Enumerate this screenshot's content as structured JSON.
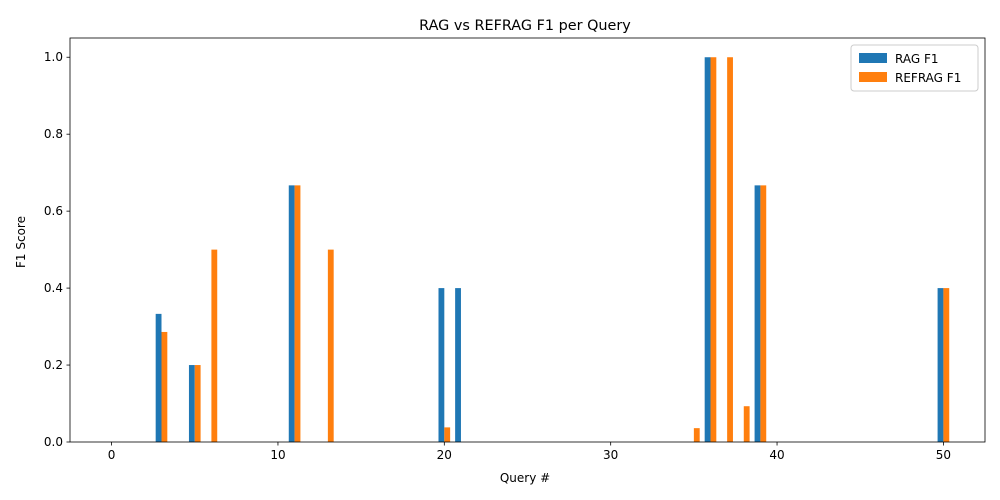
{
  "chart_data": {
    "type": "bar",
    "title": "RAG vs REFRAG F1 per Query",
    "xlabel": "Query #",
    "ylabel": "F1 Score",
    "xlim": [
      -2.5,
      52.5
    ],
    "ylim": [
      0,
      1.05
    ],
    "xticks": [
      0,
      10,
      20,
      30,
      40,
      50
    ],
    "yticks": [
      0.0,
      0.2,
      0.4,
      0.6,
      0.8,
      1.0
    ],
    "grid": false,
    "legend_position": "top-right",
    "series": [
      {
        "name": "RAG F1",
        "color": "#1f77b4",
        "points": [
          {
            "x": 3,
            "y": 0.333
          },
          {
            "x": 5,
            "y": 0.2
          },
          {
            "x": 11,
            "y": 0.667
          },
          {
            "x": 20,
            "y": 0.4
          },
          {
            "x": 21,
            "y": 0.4
          },
          {
            "x": 36,
            "y": 1.0
          },
          {
            "x": 39,
            "y": 0.667
          },
          {
            "x": 50,
            "y": 0.4
          }
        ]
      },
      {
        "name": "REFRAG F1",
        "color": "#ff7f0e",
        "points": [
          {
            "x": 3,
            "y": 0.286
          },
          {
            "x": 5,
            "y": 0.2
          },
          {
            "x": 6,
            "y": 0.5
          },
          {
            "x": 11,
            "y": 0.667
          },
          {
            "x": 13,
            "y": 0.5
          },
          {
            "x": 20,
            "y": 0.038
          },
          {
            "x": 35,
            "y": 0.036
          },
          {
            "x": 36,
            "y": 1.0
          },
          {
            "x": 37,
            "y": 1.0
          },
          {
            "x": 38,
            "y": 0.093
          },
          {
            "x": 39,
            "y": 0.667
          },
          {
            "x": 50,
            "y": 0.4
          }
        ]
      }
    ]
  }
}
